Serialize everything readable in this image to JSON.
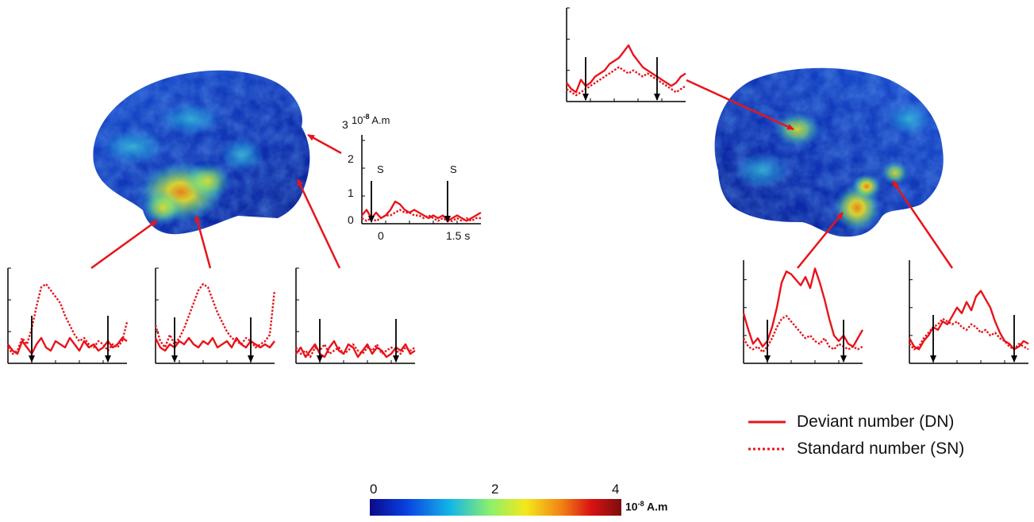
{
  "colors": {
    "deviant": "#e8141b",
    "standard": "#e8141b",
    "stimulus_arrow": "#000000",
    "colormap": [
      "#0b0a8a",
      "#0a3ee0",
      "#13b6e8",
      "#8df06a",
      "#f4e81a",
      "#f28414",
      "#d91212",
      "#7d0d0d"
    ]
  },
  "example_inset": {
    "y_ticks": [
      "0",
      "1",
      "2",
      "3"
    ],
    "y_unit_prefix": "10",
    "y_unit_exp": "-8",
    "y_unit_suffix": " A.m",
    "x_ticks": [
      "0",
      "1.5 s"
    ],
    "stim_labels": [
      "S",
      "S"
    ]
  },
  "legend": {
    "deviant_label": "Deviant number (DN)",
    "standard_label": "Standard number (SN)"
  },
  "colorbar": {
    "ticks": [
      "0",
      "2",
      "4"
    ],
    "unit_prefix": "10",
    "unit_exp": "-8",
    "unit_suffix": " A.m"
  },
  "chart_data": [
    {
      "type": "line",
      "name": "left-posterior-inset",
      "x": [
        0,
        1,
        2,
        3,
        4,
        5,
        6,
        7,
        8,
        9,
        10,
        11,
        12,
        13,
        14,
        15,
        16,
        17,
        18,
        19,
        20,
        21,
        22,
        23,
        24,
        25
      ],
      "series": [
        {
          "style": "solid",
          "values": [
            0.3,
            0.5,
            0.2,
            0.4,
            0.2,
            0.3,
            0.5,
            0.8,
            0.7,
            0.5,
            0.4,
            0.5,
            0.4,
            0.3,
            0.2,
            0.3,
            0.2,
            0.3,
            0.1,
            0.2,
            0.3,
            0.2,
            0.1,
            0.2,
            0.3,
            0.4
          ]
        },
        {
          "style": "dotted",
          "values": [
            0.2,
            0.1,
            0.2,
            0.1,
            0.2,
            0.3,
            0.3,
            0.4,
            0.5,
            0.4,
            0.4,
            0.3,
            0.3,
            0.2,
            0.3,
            0.2,
            0.1,
            0.2,
            0.1,
            0.1,
            0.2,
            0.1,
            0.2,
            0.1,
            0.2,
            0.2
          ]
        }
      ],
      "stimulus_x": [
        2,
        18
      ]
    },
    {
      "type": "line",
      "name": "left-temporal-1",
      "x": [
        0,
        1,
        2,
        3,
        4,
        5,
        6,
        7,
        8,
        9,
        10,
        11,
        12,
        13,
        14,
        15,
        16,
        17,
        18,
        19,
        20,
        21,
        22,
        23,
        24,
        25
      ],
      "series": [
        {
          "style": "solid",
          "values": [
            0.6,
            0.4,
            0.3,
            0.7,
            0.5,
            0.3,
            0.6,
            0.8,
            0.5,
            0.4,
            0.7,
            0.6,
            0.5,
            0.8,
            0.6,
            0.4,
            0.7,
            0.5,
            0.6,
            0.4,
            0.5,
            0.7,
            0.5,
            0.6,
            0.8,
            0.7
          ]
        },
        {
          "style": "dotted",
          "values": [
            0.5,
            0.3,
            0.4,
            0.8,
            0.6,
            1.1,
            1.8,
            2.4,
            2.5,
            2.3,
            2.1,
            1.9,
            1.5,
            1.2,
            0.9,
            0.7,
            0.8,
            0.6,
            0.5,
            0.7,
            0.6,
            0.4,
            0.6,
            0.5,
            0.7,
            1.3
          ]
        }
      ],
      "stimulus_x": [
        5,
        21
      ]
    },
    {
      "type": "line",
      "name": "left-temporal-2",
      "x": [
        0,
        1,
        2,
        3,
        4,
        5,
        6,
        7,
        8,
        9,
        10,
        11,
        12,
        13,
        14,
        15,
        16,
        17,
        18,
        19,
        20,
        21,
        22,
        23,
        24,
        25
      ],
      "series": [
        {
          "style": "solid",
          "values": [
            0.8,
            0.5,
            0.4,
            0.6,
            0.5,
            0.7,
            0.6,
            0.8,
            0.6,
            0.5,
            0.7,
            0.6,
            0.8,
            0.5,
            0.6,
            0.7,
            0.5,
            0.8,
            0.6,
            0.5,
            0.7,
            0.6,
            0.5,
            0.6,
            0.5,
            0.7
          ]
        },
        {
          "style": "dotted",
          "values": [
            1.2,
            0.7,
            0.5,
            0.9,
            0.6,
            0.8,
            1.1,
            1.5,
            1.9,
            2.3,
            2.5,
            2.4,
            2.0,
            1.6,
            1.3,
            1.0,
            0.8,
            0.7,
            0.6,
            0.8,
            0.7,
            0.5,
            0.6,
            0.7,
            0.9,
            2.3
          ]
        }
      ],
      "stimulus_x": [
        4,
        20
      ]
    },
    {
      "type": "line",
      "name": "left-occipital",
      "x": [
        0,
        1,
        2,
        3,
        4,
        5,
        6,
        7,
        8,
        9,
        10,
        11,
        12,
        13,
        14,
        15,
        16,
        17,
        18,
        19,
        20,
        21,
        22,
        23,
        24,
        25
      ],
      "series": [
        {
          "style": "solid",
          "values": [
            0.3,
            0.5,
            0.2,
            0.4,
            0.6,
            0.3,
            0.2,
            0.5,
            0.7,
            0.4,
            0.3,
            0.6,
            0.5,
            0.2,
            0.4,
            0.6,
            0.3,
            0.5,
            0.4,
            0.2,
            0.3,
            0.5,
            0.4,
            0.6,
            0.3,
            0.4
          ]
        },
        {
          "style": "dotted",
          "values": [
            0.5,
            0.3,
            0.4,
            0.2,
            0.5,
            0.4,
            0.6,
            0.3,
            0.4,
            0.5,
            0.3,
            0.4,
            0.6,
            0.4,
            0.3,
            0.5,
            0.4,
            0.6,
            0.3,
            0.4,
            0.5,
            0.4,
            0.3,
            0.5,
            0.4,
            0.5
          ]
        }
      ],
      "stimulus_x": [
        5,
        21
      ]
    },
    {
      "type": "line",
      "name": "right-parietal",
      "x": [
        0,
        1,
        2,
        3,
        4,
        5,
        6,
        7,
        8,
        9,
        10,
        11,
        12,
        13,
        14,
        15,
        16,
        17,
        18,
        19,
        20,
        21,
        22,
        23,
        24,
        25
      ],
      "series": [
        {
          "style": "solid",
          "values": [
            0.6,
            0.4,
            0.3,
            0.7,
            0.5,
            0.6,
            0.8,
            0.9,
            1.0,
            1.2,
            1.3,
            1.4,
            1.6,
            1.8,
            1.5,
            1.3,
            1.1,
            1.0,
            0.9,
            0.8,
            0.7,
            0.6,
            0.5,
            0.6,
            0.8,
            0.9
          ]
        },
        {
          "style": "dotted",
          "values": [
            0.4,
            0.3,
            0.2,
            0.3,
            0.4,
            0.5,
            0.6,
            0.7,
            0.8,
            0.9,
            1.0,
            1.1,
            1.0,
            0.9,
            1.0,
            0.9,
            0.8,
            0.9,
            0.8,
            0.7,
            0.6,
            0.5,
            0.4,
            0.3,
            0.4,
            0.5
          ]
        }
      ],
      "stimulus_x": [
        4,
        19
      ]
    },
    {
      "type": "line",
      "name": "right-temporal-1",
      "x": [
        0,
        1,
        2,
        3,
        4,
        5,
        6,
        7,
        8,
        9,
        10,
        11,
        12,
        13,
        14,
        15,
        16,
        17,
        18,
        19,
        20,
        21,
        22,
        23,
        24,
        25
      ],
      "series": [
        {
          "style": "solid",
          "values": [
            1.8,
            1.2,
            0.7,
            0.9,
            0.6,
            0.8,
            1.3,
            2.0,
            2.9,
            3.3,
            3.2,
            3.0,
            2.8,
            3.1,
            2.7,
            3.4,
            2.9,
            2.3,
            1.6,
            1.0,
            0.8,
            1.0,
            0.7,
            0.6,
            0.9,
            1.2
          ]
        },
        {
          "style": "dotted",
          "values": [
            0.9,
            0.6,
            0.5,
            0.6,
            0.4,
            0.6,
            0.9,
            1.3,
            1.6,
            1.7,
            1.5,
            1.3,
            1.1,
            0.9,
            1.0,
            0.8,
            0.7,
            0.9,
            0.6,
            0.5,
            0.7,
            0.6,
            0.5,
            0.6,
            0.5,
            0.6
          ]
        }
      ],
      "stimulus_x": [
        5,
        21
      ]
    },
    {
      "type": "line",
      "name": "right-temporal-2",
      "x": [
        0,
        1,
        2,
        3,
        4,
        5,
        6,
        7,
        8,
        9,
        10,
        11,
        12,
        13,
        14,
        15,
        16,
        17,
        18,
        19,
        20,
        21,
        22,
        23,
        24,
        25
      ],
      "series": [
        {
          "style": "solid",
          "values": [
            0.9,
            0.6,
            0.5,
            0.8,
            1.0,
            1.3,
            1.2,
            1.5,
            1.4,
            1.7,
            2.0,
            1.8,
            2.2,
            1.9,
            2.4,
            2.6,
            2.3,
            2.0,
            1.5,
            1.1,
            0.8,
            0.7,
            0.5,
            0.6,
            0.8,
            0.7
          ]
        },
        {
          "style": "dotted",
          "values": [
            0.7,
            0.5,
            0.6,
            0.9,
            1.1,
            1.3,
            1.4,
            1.6,
            1.5,
            1.4,
            1.5,
            1.3,
            1.2,
            1.4,
            1.3,
            1.1,
            1.2,
            1.0,
            1.1,
            0.9,
            0.8,
            0.6,
            0.5,
            0.7,
            0.6,
            0.5
          ]
        }
      ],
      "stimulus_x": [
        5,
        22
      ]
    }
  ]
}
